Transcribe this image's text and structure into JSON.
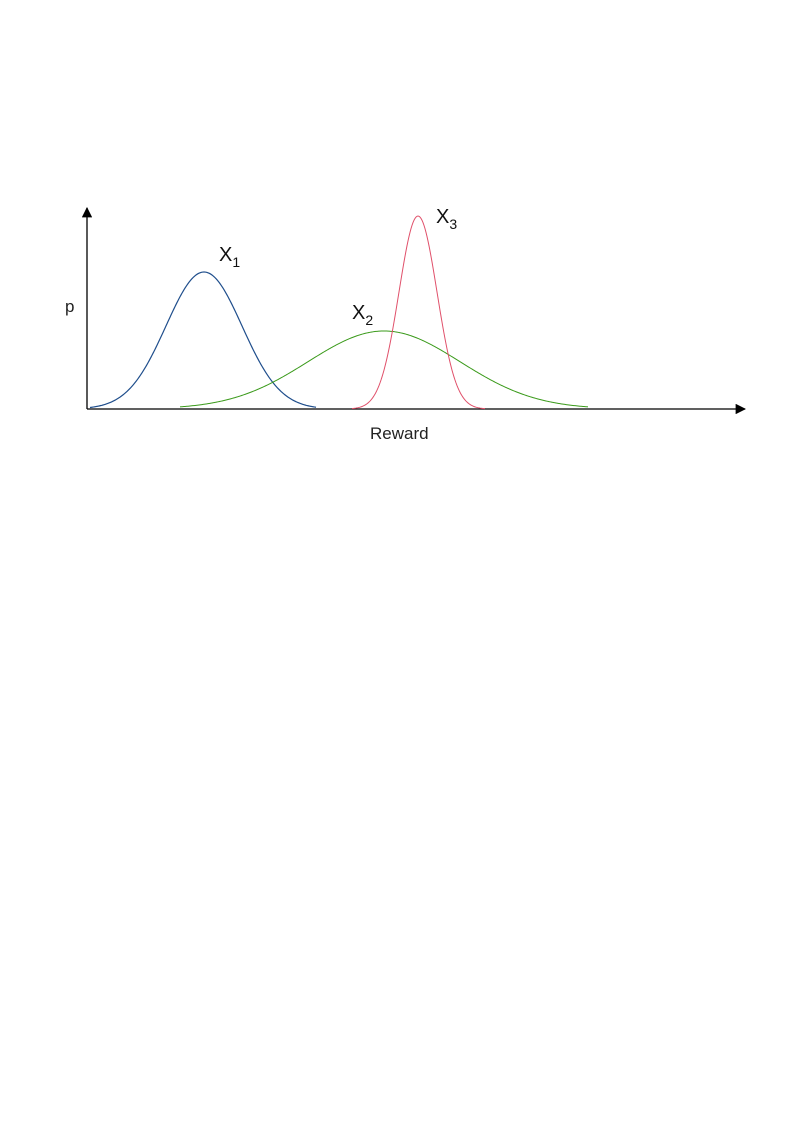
{
  "diagram": {
    "y_axis_label": "p",
    "x_axis_label": "Reward",
    "axis_color": "#000000",
    "curves": [
      {
        "label": "X",
        "subscript": "1",
        "color": "#1f4e8c"
      },
      {
        "label": "X",
        "subscript": "2",
        "color": "#3a9a1a"
      },
      {
        "label": "X",
        "subscript": "3",
        "color": "#e0506a"
      }
    ]
  }
}
